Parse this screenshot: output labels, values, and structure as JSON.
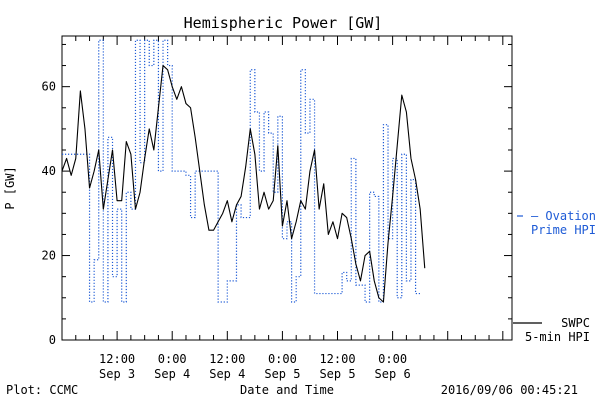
{
  "chart_data": {
    "type": "line",
    "title": "Hemispheric Power [GW]",
    "xlabel": "Date and Time",
    "ylabel": "P [GW]",
    "ylim": [
      0,
      72
    ],
    "yticks": [
      0,
      20,
      40,
      60
    ],
    "xlim_hours": [
      0,
      98
    ],
    "xticks": [
      {
        "hour": 12,
        "time": "12:00",
        "date": "Sep 3"
      },
      {
        "hour": 24,
        "time": "0:00",
        "date": "Sep 4"
      },
      {
        "hour": 36,
        "time": "12:00",
        "date": "Sep 4"
      },
      {
        "hour": 48,
        "time": "0:00",
        "date": "Sep 5"
      },
      {
        "hour": 60,
        "time": "12:00",
        "date": "Sep 5"
      },
      {
        "hour": 72,
        "time": "0:00",
        "date": "Sep 6"
      }
    ],
    "grid": false,
    "legend_position": "right",
    "series": [
      {
        "name": "Ovation Prime HPI",
        "color": "#1e5bd6",
        "style": "dotted-step",
        "points": [
          [
            0,
            44
          ],
          [
            3,
            44
          ],
          [
            6,
            9
          ],
          [
            7,
            19
          ],
          [
            8,
            71
          ],
          [
            9,
            9
          ],
          [
            10,
            48
          ],
          [
            11,
            15
          ],
          [
            12,
            31
          ],
          [
            13,
            9
          ],
          [
            14,
            35
          ],
          [
            15,
            31
          ],
          [
            16,
            71
          ],
          [
            17,
            42
          ],
          [
            18,
            71
          ],
          [
            19,
            65
          ],
          [
            20,
            71
          ],
          [
            21,
            40
          ],
          [
            22,
            71
          ],
          [
            23,
            65
          ],
          [
            24,
            40
          ],
          [
            26,
            40
          ],
          [
            27,
            39
          ],
          [
            28,
            29
          ],
          [
            29,
            40
          ],
          [
            30,
            40
          ],
          [
            34,
            9
          ],
          [
            36,
            14
          ],
          [
            38,
            32
          ],
          [
            39,
            29
          ],
          [
            41,
            64
          ],
          [
            42,
            54
          ],
          [
            43,
            40
          ],
          [
            44,
            54
          ],
          [
            45,
            49
          ],
          [
            46,
            35
          ],
          [
            47,
            53
          ],
          [
            48,
            24
          ],
          [
            49,
            28
          ],
          [
            50,
            9
          ],
          [
            51,
            15
          ],
          [
            52,
            64
          ],
          [
            53,
            49
          ],
          [
            54,
            57
          ],
          [
            55,
            11
          ],
          [
            59,
            11
          ],
          [
            61,
            16
          ],
          [
            62,
            14
          ],
          [
            63,
            43
          ],
          [
            64,
            13
          ],
          [
            66,
            9
          ],
          [
            67,
            35
          ],
          [
            68,
            34
          ],
          [
            69,
            9
          ],
          [
            70,
            51
          ],
          [
            71,
            24
          ],
          [
            72,
            43
          ],
          [
            73,
            10
          ],
          [
            74,
            44
          ],
          [
            75,
            14
          ],
          [
            76,
            38
          ],
          [
            77,
            11
          ],
          [
            78,
            11
          ]
        ]
      },
      {
        "name": "SWPC",
        "color": "#000000",
        "style": "solid",
        "points": [
          [
            0,
            40
          ],
          [
            1,
            43
          ],
          [
            2,
            39
          ],
          [
            3,
            43
          ],
          [
            4,
            59
          ],
          [
            5,
            50
          ],
          [
            6,
            36
          ],
          [
            7,
            40
          ],
          [
            8,
            45
          ],
          [
            9,
            31
          ],
          [
            10,
            38
          ],
          [
            11,
            45
          ],
          [
            12,
            33
          ],
          [
            13,
            33
          ],
          [
            14,
            47
          ],
          [
            15,
            44
          ],
          [
            16,
            31
          ],
          [
            17,
            35
          ],
          [
            18,
            43
          ],
          [
            19,
            50
          ],
          [
            20,
            45
          ],
          [
            21,
            55
          ],
          [
            22,
            65
          ],
          [
            23,
            64
          ],
          [
            24,
            60
          ],
          [
            25,
            57
          ],
          [
            26,
            60
          ],
          [
            27,
            56
          ],
          [
            28,
            55
          ],
          [
            29,
            48
          ],
          [
            30,
            40
          ],
          [
            31,
            32
          ],
          [
            32,
            26
          ],
          [
            33,
            26
          ],
          [
            34,
            28
          ],
          [
            35,
            30
          ],
          [
            36,
            33
          ],
          [
            37,
            28
          ],
          [
            38,
            32
          ],
          [
            39,
            34
          ],
          [
            40,
            41
          ],
          [
            41,
            50
          ],
          [
            42,
            44
          ],
          [
            43,
            31
          ],
          [
            44,
            35
          ],
          [
            45,
            31
          ],
          [
            46,
            33
          ],
          [
            47,
            46
          ],
          [
            48,
            27
          ],
          [
            49,
            33
          ],
          [
            50,
            24
          ],
          [
            51,
            28
          ],
          [
            52,
            33
          ],
          [
            53,
            31
          ],
          [
            54,
            40
          ],
          [
            55,
            45
          ],
          [
            56,
            31
          ],
          [
            57,
            37
          ],
          [
            58,
            25
          ],
          [
            59,
            28
          ],
          [
            60,
            24
          ],
          [
            61,
            30
          ],
          [
            62,
            29
          ],
          [
            63,
            24
          ],
          [
            64,
            18
          ],
          [
            65,
            14
          ],
          [
            66,
            20
          ],
          [
            67,
            21
          ],
          [
            68,
            14
          ],
          [
            69,
            10
          ],
          [
            70,
            9
          ],
          [
            71,
            23
          ],
          [
            72,
            34
          ],
          [
            73,
            46
          ],
          [
            74,
            58
          ],
          [
            75,
            54
          ],
          [
            76,
            43
          ],
          [
            77,
            38
          ],
          [
            78,
            31
          ],
          [
            79,
            17
          ]
        ]
      }
    ],
    "legend": [
      {
        "series": "Ovation Prime HPI",
        "lines": [
          "Ovation",
          "Prime HPI"
        ],
        "color": "#1e5bd6",
        "marker": "dash"
      },
      {
        "series": "SWPC",
        "lines": [
          "SWPC",
          "5-min HPI"
        ],
        "color": "#000000",
        "marker": "line"
      }
    ]
  },
  "footer": {
    "left": "Plot: CCMC",
    "center": "Date and Time",
    "right": "2016/09/06 00:45:21"
  }
}
